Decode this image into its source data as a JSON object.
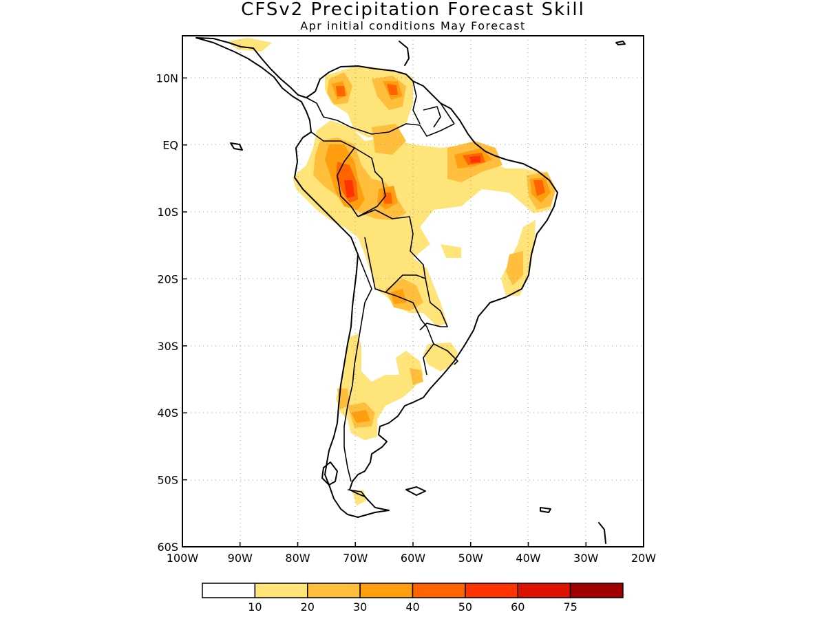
{
  "title": "CFSv2 Precipitation Forecast Skill",
  "subtitle": "Apr initial conditions  May Forecast",
  "map": {
    "lat_labels": [
      {
        "lat": 10,
        "label": "10N"
      },
      {
        "lat": 0,
        "label": "EQ"
      },
      {
        "lat": -10,
        "label": "10S"
      },
      {
        "lat": -20,
        "label": "20S"
      },
      {
        "lat": -30,
        "label": "30S"
      },
      {
        "lat": -40,
        "label": "40S"
      },
      {
        "lat": -50,
        "label": "50S"
      },
      {
        "lat": -60,
        "label": "60S"
      }
    ],
    "lon_labels": [
      {
        "lon": -100,
        "label": "100W"
      },
      {
        "lon": -90,
        "label": "90W"
      },
      {
        "lon": -80,
        "label": "80W"
      },
      {
        "lon": -70,
        "label": "70W"
      },
      {
        "lon": -60,
        "label": "60W"
      },
      {
        "lon": -50,
        "label": "50W"
      },
      {
        "lon": -40,
        "label": "40W"
      },
      {
        "lon": -30,
        "label": "30W"
      },
      {
        "lon": -20,
        "label": "20W"
      }
    ]
  },
  "colorbar": {
    "colors": [
      "#ffffff",
      "#ffe47a",
      "#ffbf3c",
      "#ff9f10",
      "#ff6400",
      "#ff3300",
      "#dd1100",
      "#a00000"
    ],
    "labels": [
      "10",
      "20",
      "30",
      "40",
      "50",
      "60",
      "75"
    ]
  }
}
